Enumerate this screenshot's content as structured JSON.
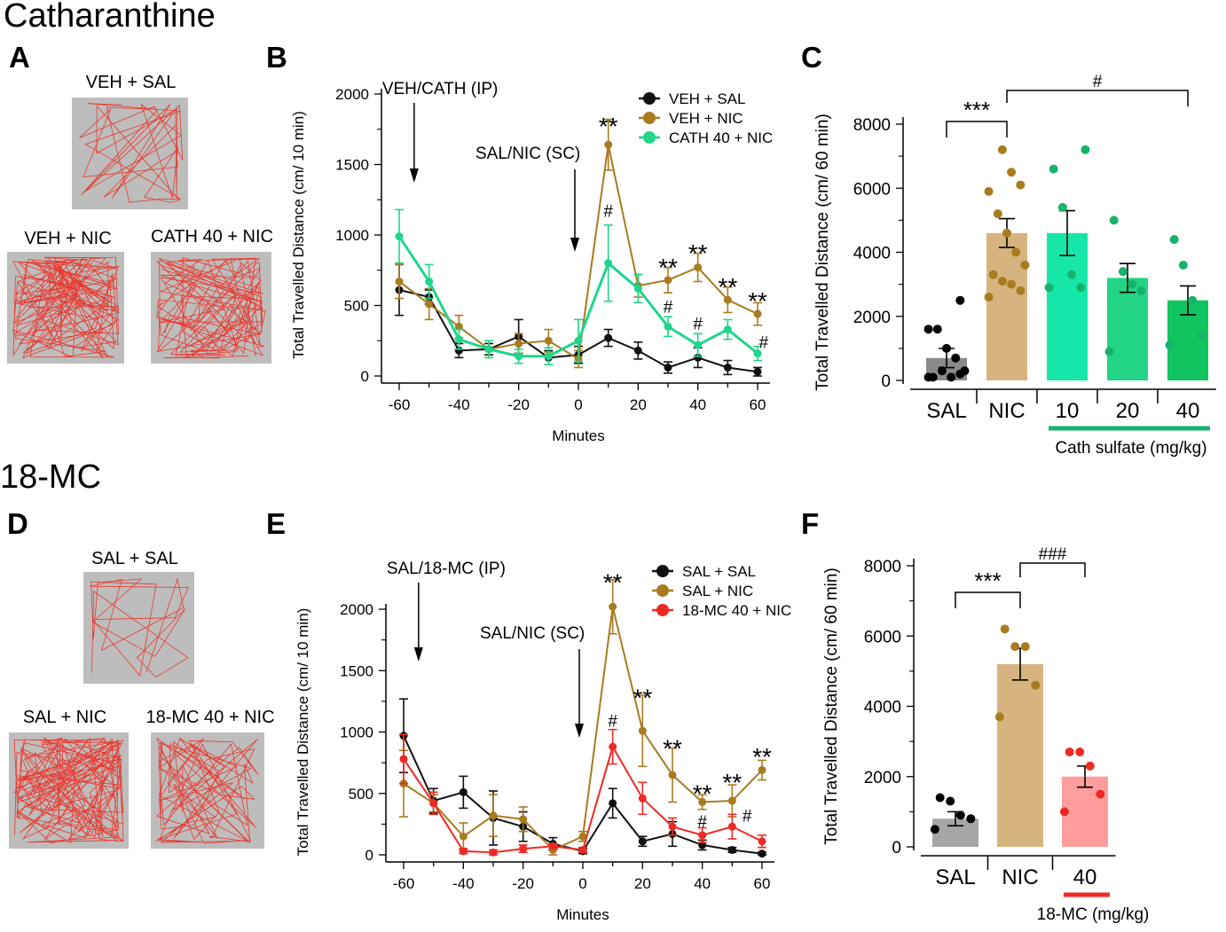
{
  "sections": {
    "top": "Catharanthine",
    "bottom": "18-MC"
  },
  "panel_letters": {
    "A": "A",
    "B": "B",
    "C": "C",
    "D": "D",
    "E": "E",
    "F": "F"
  },
  "tracks": {
    "A": [
      "VEH + SAL",
      "VEH + NIC",
      "CATH 40 + NIC"
    ],
    "D": [
      "SAL + SAL",
      "SAL + NIC",
      "18-MC 40 + NIC"
    ]
  },
  "colors": {
    "black": "#111111",
    "brown": "#a87b20",
    "green": "#1fd58c",
    "red": "#ef2a24",
    "track_bg": "#bdbdbd",
    "track_line": "#e8392e"
  },
  "chart_data": [
    {
      "panel": "B",
      "type": "line",
      "ylabel": "Total Travelled Distance (cm/ 10 min)",
      "xlabel": "Minutes",
      "ylim": [
        0,
        2000
      ],
      "yticks": [
        0,
        500,
        1000,
        1500,
        2000
      ],
      "xticks": [
        -60,
        -40,
        -20,
        0,
        20,
        40,
        60
      ],
      "annotations": {
        "arrow1": "VEH/CATH (IP)",
        "arrow2": "SAL/NIC (SC)"
      },
      "series": [
        {
          "name": "VEH + SAL",
          "color": "black",
          "x": [
            -60,
            -50,
            -40,
            -30,
            -20,
            -10,
            0,
            10,
            20,
            30,
            40,
            50,
            60
          ],
          "y": [
            610,
            560,
            180,
            190,
            280,
            130,
            150,
            270,
            180,
            60,
            130,
            60,
            30
          ],
          "err": [
            180,
            50,
            50,
            40,
            120,
            50,
            60,
            60,
            60,
            40,
            70,
            50,
            30
          ]
        },
        {
          "name": "VEH + NIC",
          "color": "brown",
          "x": [
            -60,
            -50,
            -40,
            -30,
            -20,
            -10,
            0,
            10,
            20,
            30,
            40,
            50,
            60
          ],
          "y": [
            670,
            510,
            350,
            190,
            230,
            250,
            120,
            1640,
            640,
            680,
            770,
            540,
            440
          ],
          "err": [
            120,
            110,
            80,
            60,
            70,
            80,
            60,
            180,
            80,
            90,
            100,
            90,
            80
          ]
        },
        {
          "name": "CATH 40 + NIC",
          "color": "green",
          "x": [
            -60,
            -50,
            -40,
            -30,
            -20,
            -10,
            0,
            10,
            20,
            30,
            40,
            50,
            60
          ],
          "y": [
            990,
            670,
            260,
            190,
            140,
            140,
            250,
            800,
            620,
            350,
            220,
            330,
            160
          ],
          "err": [
            190,
            120,
            70,
            60,
            50,
            60,
            150,
            270,
            100,
            70,
            80,
            70,
            50
          ]
        }
      ],
      "sig": [
        {
          "x": 10,
          "y": 1800,
          "text": "**"
        },
        {
          "x": 10,
          "y": 1180,
          "text": "#"
        },
        {
          "x": 30,
          "y": 800,
          "text": "**"
        },
        {
          "x": 30,
          "y": 500,
          "text": "#"
        },
        {
          "x": 40,
          "y": 900,
          "text": "**"
        },
        {
          "x": 40,
          "y": 380,
          "text": "#"
        },
        {
          "x": 50,
          "y": 660,
          "text": "**"
        },
        {
          "x": 60,
          "y": 560,
          "text": "**"
        },
        {
          "x": 62,
          "y": 250,
          "text": "#"
        }
      ]
    },
    {
      "panel": "C",
      "type": "bar",
      "ylabel": "Total Travelled Distance (cm/ 60 min)",
      "ylim": [
        0,
        8000
      ],
      "yticks": [
        0,
        2000,
        4000,
        6000,
        8000
      ],
      "categories": [
        "SAL",
        "NIC",
        "10",
        "20",
        "40"
      ],
      "group_label": "Cath sulfate (mg/kg)",
      "values": [
        700,
        4600,
        4600,
        3200,
        2500
      ],
      "sem": [
        300,
        450,
        700,
        450,
        450
      ],
      "bar_colors": [
        "#8a8a8a",
        "#d7b47f",
        "#16e7a9",
        "#22d585",
        "#10c55f"
      ],
      "dot_colors": [
        "#000000",
        "#a87b20",
        "#16b36c",
        "#16b36c",
        "#16b36c"
      ],
      "points": [
        [
          100,
          200,
          100,
          300,
          100,
          300,
          700,
          1000,
          1600,
          1600,
          2500
        ],
        [
          2600,
          2800,
          3000,
          3100,
          3300,
          3600,
          4000,
          4600,
          5200,
          5900,
          6100,
          6500,
          7200
        ],
        [
          2900,
          2900,
          3300,
          5400,
          6600,
          7200
        ],
        [
          900,
          2800,
          3000,
          3400,
          5000
        ],
        [
          1100,
          1400,
          2500,
          3600,
          4400
        ]
      ],
      "brackets": [
        {
          "from": 0,
          "to": 1,
          "text": "***"
        },
        {
          "from": 1,
          "to": 4,
          "text": "#"
        }
      ]
    },
    {
      "panel": "E",
      "type": "line",
      "ylabel": "Total Travelled Distance (cm/ 10 min)",
      "xlabel": "Minutes",
      "ylim": [
        0,
        2000
      ],
      "yticks": [
        0,
        500,
        1000,
        1500,
        2000
      ],
      "xticks": [
        -60,
        -40,
        -20,
        0,
        20,
        40,
        60
      ],
      "annotations": {
        "arrow1": "SAL/18-MC (IP)",
        "arrow2": "SAL/NIC (SC)"
      },
      "series": [
        {
          "name": "SAL + SAL",
          "color": "black",
          "x": [
            -60,
            -50,
            -40,
            -30,
            -20,
            -10,
            0,
            10,
            20,
            30,
            40,
            50,
            60
          ],
          "y": [
            970,
            440,
            510,
            300,
            230,
            90,
            30,
            420,
            110,
            170,
            80,
            40,
            10
          ],
          "err": [
            300,
            100,
            130,
            220,
            120,
            50,
            20,
            120,
            40,
            100,
            40,
            20,
            10
          ]
        },
        {
          "name": "SAL + NIC",
          "color": "brown",
          "x": [
            -60,
            -50,
            -40,
            -30,
            -20,
            -10,
            0,
            10,
            20,
            30,
            40,
            50,
            60
          ],
          "y": [
            580,
            420,
            150,
            320,
            290,
            40,
            150,
            2020,
            1010,
            650,
            430,
            440,
            690
          ],
          "err": [
            270,
            70,
            110,
            170,
            100,
            40,
            40,
            220,
            290,
            220,
            60,
            130,
            80
          ]
        },
        {
          "name": "18-MC 40 + NIC",
          "color": "red",
          "x": [
            -60,
            -50,
            -40,
            -30,
            -20,
            -10,
            0,
            10,
            20,
            30,
            40,
            50,
            60
          ],
          "y": [
            780,
            420,
            30,
            20,
            50,
            70,
            40,
            880,
            460,
            230,
            160,
            230,
            110
          ],
          "err": [
            200,
            90,
            20,
            20,
            30,
            20,
            20,
            140,
            130,
            70,
            60,
            100,
            50
          ]
        }
      ],
      "sig": [
        {
          "x": 10,
          "y": 2250,
          "text": "**"
        },
        {
          "x": 10,
          "y": 1100,
          "text": "#"
        },
        {
          "x": 20,
          "y": 1310,
          "text": "**"
        },
        {
          "x": 30,
          "y": 900,
          "text": "**"
        },
        {
          "x": 40,
          "y": 530,
          "text": "**"
        },
        {
          "x": 40,
          "y": 280,
          "text": "#"
        },
        {
          "x": 50,
          "y": 620,
          "text": "**"
        },
        {
          "x": 55,
          "y": 330,
          "text": "#"
        },
        {
          "x": 60,
          "y": 830,
          "text": "**"
        }
      ]
    },
    {
      "panel": "F",
      "type": "bar",
      "ylabel": "Total Travelled Distance (cm/ 60 min)",
      "ylim": [
        0,
        8000
      ],
      "yticks": [
        0,
        2000,
        4000,
        6000,
        8000
      ],
      "categories": [
        "SAL",
        "NIC",
        "40"
      ],
      "group_label": "18-MC (mg/kg)",
      "values": [
        800,
        5200,
        2000
      ],
      "sem": [
        200,
        450,
        300
      ],
      "bar_colors": [
        "#a6a6a6",
        "#d7b47f",
        "#ff9d9d"
      ],
      "dot_colors": [
        "#000000",
        "#a87b20",
        "#ef2a24"
      ],
      "points": [
        [
          500,
          800,
          900,
          1300,
          1400
        ],
        [
          3700,
          4600,
          5700,
          5700,
          6200
        ],
        [
          1000,
          1500,
          2300,
          2700,
          2700
        ]
      ],
      "brackets": [
        {
          "from": 0,
          "to": 1,
          "text": "***"
        },
        {
          "from": 1,
          "to": 2,
          "text": "###"
        }
      ]
    }
  ]
}
